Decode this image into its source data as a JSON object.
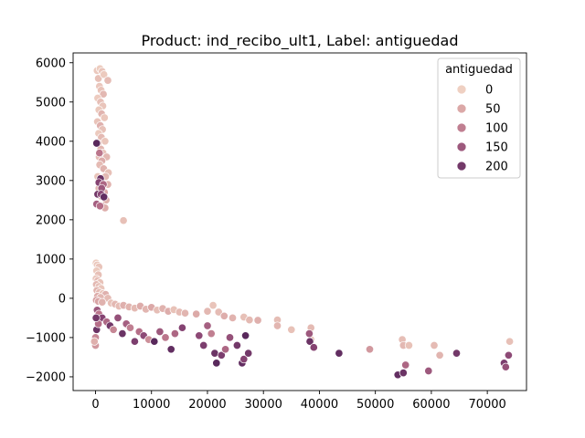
{
  "chart_data": {
    "type": "scatter",
    "title": "Product: ind_recibo_ult1, Label: antiguedad",
    "xlabel": "",
    "ylabel": "",
    "xlim": [
      -4000,
      77000
    ],
    "ylim": [
      -2350,
      6250
    ],
    "xticks": [
      0,
      10000,
      20000,
      30000,
      40000,
      50000,
      60000,
      70000
    ],
    "yticks": [
      -2000,
      -1000,
      0,
      1000,
      2000,
      3000,
      4000,
      5000,
      6000
    ],
    "grid": false,
    "legend": {
      "title": "antiguedad",
      "placement": "top-right",
      "entries": [
        {
          "label": "0",
          "value": 0
        },
        {
          "label": "50",
          "value": 50
        },
        {
          "label": "100",
          "value": 100
        },
        {
          "label": "150",
          "value": 150
        },
        {
          "label": "200",
          "value": 200
        }
      ]
    },
    "hue": {
      "name": "antiguedad",
      "min": 0,
      "max": 240
    },
    "points": [
      {
        "x": 300,
        "y": 5800,
        "h": 10
      },
      {
        "x": 800,
        "y": 5850,
        "h": 5
      },
      {
        "x": 1200,
        "y": 5780,
        "h": 15
      },
      {
        "x": 500,
        "y": 5600,
        "h": 20
      },
      {
        "x": 1500,
        "y": 5700,
        "h": 8
      },
      {
        "x": 2200,
        "y": 5550,
        "h": 25
      },
      {
        "x": 700,
        "y": 5400,
        "h": 12
      },
      {
        "x": 1000,
        "y": 5300,
        "h": 18
      },
      {
        "x": 1400,
        "y": 5200,
        "h": 30
      },
      {
        "x": 400,
        "y": 5100,
        "h": 6
      },
      {
        "x": 900,
        "y": 5000,
        "h": 22
      },
      {
        "x": 1300,
        "y": 4900,
        "h": 14
      },
      {
        "x": 600,
        "y": 4800,
        "h": 9
      },
      {
        "x": 1100,
        "y": 4700,
        "h": 35
      },
      {
        "x": 1600,
        "y": 4600,
        "h": 11
      },
      {
        "x": 350,
        "y": 4500,
        "h": 16
      },
      {
        "x": 850,
        "y": 4400,
        "h": 40
      },
      {
        "x": 1250,
        "y": 4300,
        "h": 19
      },
      {
        "x": 550,
        "y": 4200,
        "h": 7
      },
      {
        "x": 1050,
        "y": 4100,
        "h": 28
      },
      {
        "x": 1700,
        "y": 4000,
        "h": 13
      },
      {
        "x": 450,
        "y": 3950,
        "h": 21
      },
      {
        "x": 950,
        "y": 3800,
        "h": 33
      },
      {
        "x": 1350,
        "y": 3700,
        "h": 17
      },
      {
        "x": 650,
        "y": 3600,
        "h": 24
      },
      {
        "x": 2000,
        "y": 3600,
        "h": 30
      },
      {
        "x": 1150,
        "y": 3500,
        "h": 45
      },
      {
        "x": 750,
        "y": 3400,
        "h": 26
      },
      {
        "x": 1450,
        "y": 3300,
        "h": 38
      },
      {
        "x": 2300,
        "y": 3200,
        "h": 20
      },
      {
        "x": 400,
        "y": 3100,
        "h": 15
      },
      {
        "x": 1800,
        "y": 3100,
        "h": 29
      },
      {
        "x": 900,
        "y": 3000,
        "h": 50
      },
      {
        "x": 1300,
        "y": 2900,
        "h": 42
      },
      {
        "x": 2200,
        "y": 2900,
        "h": 36
      },
      {
        "x": 600,
        "y": 2800,
        "h": 31
      },
      {
        "x": 1600,
        "y": 2700,
        "h": 55
      },
      {
        "x": 1000,
        "y": 2600,
        "h": 48
      },
      {
        "x": 1900,
        "y": 2500,
        "h": 39
      },
      {
        "x": 1200,
        "y": 2350,
        "h": 60
      },
      {
        "x": 1700,
        "y": 2300,
        "h": 44
      },
      {
        "x": 5000,
        "y": 1980,
        "h": 20
      },
      {
        "x": 200,
        "y": 3950,
        "h": 230
      },
      {
        "x": 700,
        "y": 3700,
        "h": 110
      },
      {
        "x": 900,
        "y": 3050,
        "h": 210
      },
      {
        "x": 600,
        "y": 2950,
        "h": 180
      },
      {
        "x": 1400,
        "y": 2900,
        "h": 130
      },
      {
        "x": 1100,
        "y": 2800,
        "h": 150
      },
      {
        "x": 400,
        "y": 2650,
        "h": 200
      },
      {
        "x": 1000,
        "y": 2650,
        "h": 175
      },
      {
        "x": 1500,
        "y": 2580,
        "h": 220
      },
      {
        "x": 200,
        "y": 2400,
        "h": 140
      },
      {
        "x": 800,
        "y": 2350,
        "h": 120
      },
      {
        "x": 100,
        "y": 900,
        "h": 5
      },
      {
        "x": 300,
        "y": 850,
        "h": 10
      },
      {
        "x": 600,
        "y": 800,
        "h": 15
      },
      {
        "x": 200,
        "y": 700,
        "h": 8
      },
      {
        "x": 500,
        "y": 600,
        "h": 20
      },
      {
        "x": 100,
        "y": 500,
        "h": 12
      },
      {
        "x": 400,
        "y": 450,
        "h": 25
      },
      {
        "x": 800,
        "y": 400,
        "h": 18
      },
      {
        "x": 150,
        "y": 350,
        "h": 30
      },
      {
        "x": 600,
        "y": 300,
        "h": 22
      },
      {
        "x": 1000,
        "y": 250,
        "h": 14
      },
      {
        "x": 250,
        "y": 200,
        "h": 35
      },
      {
        "x": 700,
        "y": 150,
        "h": 28
      },
      {
        "x": 1300,
        "y": 120,
        "h": 16
      },
      {
        "x": 1800,
        "y": 100,
        "h": 40
      },
      {
        "x": 350,
        "y": 50,
        "h": 45
      },
      {
        "x": 900,
        "y": 20,
        "h": 32
      },
      {
        "x": 2200,
        "y": 0,
        "h": 26
      },
      {
        "x": 150,
        "y": -50,
        "h": 60
      },
      {
        "x": 500,
        "y": -80,
        "h": 55
      },
      {
        "x": 1200,
        "y": -100,
        "h": 38
      },
      {
        "x": 2800,
        "y": -120,
        "h": 20
      },
      {
        "x": 3500,
        "y": -150,
        "h": 30
      },
      {
        "x": 4200,
        "y": -200,
        "h": 25
      },
      {
        "x": 5000,
        "y": -180,
        "h": 40
      },
      {
        "x": 6000,
        "y": -220,
        "h": 35
      },
      {
        "x": 7000,
        "y": -250,
        "h": 28
      },
      {
        "x": 8000,
        "y": -200,
        "h": 45
      },
      {
        "x": 9000,
        "y": -280,
        "h": 32
      },
      {
        "x": 10000,
        "y": -230,
        "h": 50
      },
      {
        "x": 11000,
        "y": -300,
        "h": 22
      },
      {
        "x": 12000,
        "y": -260,
        "h": 38
      },
      {
        "x": 13000,
        "y": -330,
        "h": 44
      },
      {
        "x": 14000,
        "y": -290,
        "h": 18
      },
      {
        "x": 15000,
        "y": -350,
        "h": 26
      },
      {
        "x": 16000,
        "y": -380,
        "h": 34
      },
      {
        "x": 18000,
        "y": -400,
        "h": 48
      },
      {
        "x": 20000,
        "y": -330,
        "h": 30
      },
      {
        "x": 21000,
        "y": -180,
        "h": 15
      },
      {
        "x": 22000,
        "y": -350,
        "h": 25
      },
      {
        "x": 23000,
        "y": -450,
        "h": 42
      },
      {
        "x": 24500,
        "y": -500,
        "h": 36
      },
      {
        "x": 26500,
        "y": -480,
        "h": 20
      },
      {
        "x": 27500,
        "y": -550,
        "h": 28
      },
      {
        "x": 29000,
        "y": -560,
        "h": 40
      },
      {
        "x": 32500,
        "y": -550,
        "h": 24
      },
      {
        "x": 32500,
        "y": -700,
        "h": 32
      },
      {
        "x": 35000,
        "y": -800,
        "h": 18
      },
      {
        "x": 38500,
        "y": -750,
        "h": 28
      },
      {
        "x": 38500,
        "y": -1050,
        "h": 20
      },
      {
        "x": 49000,
        "y": -1300,
        "h": 70
      },
      {
        "x": 54800,
        "y": -1050,
        "h": 22
      },
      {
        "x": 55000,
        "y": -1200,
        "h": 30
      },
      {
        "x": 56000,
        "y": -1200,
        "h": 18
      },
      {
        "x": 60500,
        "y": -1200,
        "h": 26
      },
      {
        "x": 61500,
        "y": -1450,
        "h": 34
      },
      {
        "x": 74000,
        "y": -1100,
        "h": 20
      },
      {
        "x": 300,
        "y": -300,
        "h": 150
      },
      {
        "x": 600,
        "y": -400,
        "h": 110
      },
      {
        "x": 1200,
        "y": -500,
        "h": 180
      },
      {
        "x": 2000,
        "y": -600,
        "h": 130
      },
      {
        "x": 2600,
        "y": -700,
        "h": 200
      },
      {
        "x": 3200,
        "y": -800,
        "h": 90
      },
      {
        "x": 4000,
        "y": -500,
        "h": 160
      },
      {
        "x": 4800,
        "y": -900,
        "h": 210
      },
      {
        "x": 5500,
        "y": -650,
        "h": 140
      },
      {
        "x": 6200,
        "y": -750,
        "h": 100
      },
      {
        "x": 7000,
        "y": -1100,
        "h": 190
      },
      {
        "x": 7800,
        "y": -850,
        "h": 120
      },
      {
        "x": 8600,
        "y": -950,
        "h": 170
      },
      {
        "x": 9500,
        "y": -1050,
        "h": 80
      },
      {
        "x": 10500,
        "y": -1100,
        "h": 230
      },
      {
        "x": 11500,
        "y": -850,
        "h": 150
      },
      {
        "x": 12500,
        "y": -1000,
        "h": 110
      },
      {
        "x": 13500,
        "y": -1300,
        "h": 220
      },
      {
        "x": 14200,
        "y": -900,
        "h": 130
      },
      {
        "x": 15500,
        "y": -750,
        "h": 180
      },
      {
        "x": 0,
        "y": -1000,
        "h": 90
      },
      {
        "x": 0,
        "y": -1200,
        "h": 70
      },
      {
        "x": -200,
        "y": -1100,
        "h": 40
      },
      {
        "x": 200,
        "y": -800,
        "h": 210
      },
      {
        "x": 500,
        "y": -650,
        "h": 120
      },
      {
        "x": 100,
        "y": -500,
        "h": 200
      },
      {
        "x": 18500,
        "y": -950,
        "h": 170
      },
      {
        "x": 19300,
        "y": -1200,
        "h": 190
      },
      {
        "x": 20000,
        "y": -700,
        "h": 140
      },
      {
        "x": 20700,
        "y": -900,
        "h": 100
      },
      {
        "x": 21300,
        "y": -1400,
        "h": 210
      },
      {
        "x": 21600,
        "y": -1650,
        "h": 230
      },
      {
        "x": 22500,
        "y": -1450,
        "h": 190
      },
      {
        "x": 23200,
        "y": -1300,
        "h": 130
      },
      {
        "x": 24000,
        "y": -1000,
        "h": 160
      },
      {
        "x": 25300,
        "y": -1200,
        "h": 200
      },
      {
        "x": 26200,
        "y": -1650,
        "h": 220
      },
      {
        "x": 26500,
        "y": -1550,
        "h": 180
      },
      {
        "x": 26800,
        "y": -950,
        "h": 230
      },
      {
        "x": 27300,
        "y": -1400,
        "h": 200
      },
      {
        "x": 38200,
        "y": -900,
        "h": 150
      },
      {
        "x": 38300,
        "y": -1100,
        "h": 210
      },
      {
        "x": 39000,
        "y": -1250,
        "h": 180
      },
      {
        "x": 43500,
        "y": -1400,
        "h": 220
      },
      {
        "x": 54000,
        "y": -1950,
        "h": 220
      },
      {
        "x": 55000,
        "y": -1900,
        "h": 210
      },
      {
        "x": 55400,
        "y": -1700,
        "h": 130
      },
      {
        "x": 59500,
        "y": -1850,
        "h": 150
      },
      {
        "x": 64500,
        "y": -1400,
        "h": 200
      },
      {
        "x": 73000,
        "y": -1650,
        "h": 190
      },
      {
        "x": 73300,
        "y": -1750,
        "h": 160
      },
      {
        "x": 73800,
        "y": -1450,
        "h": 170
      }
    ]
  }
}
